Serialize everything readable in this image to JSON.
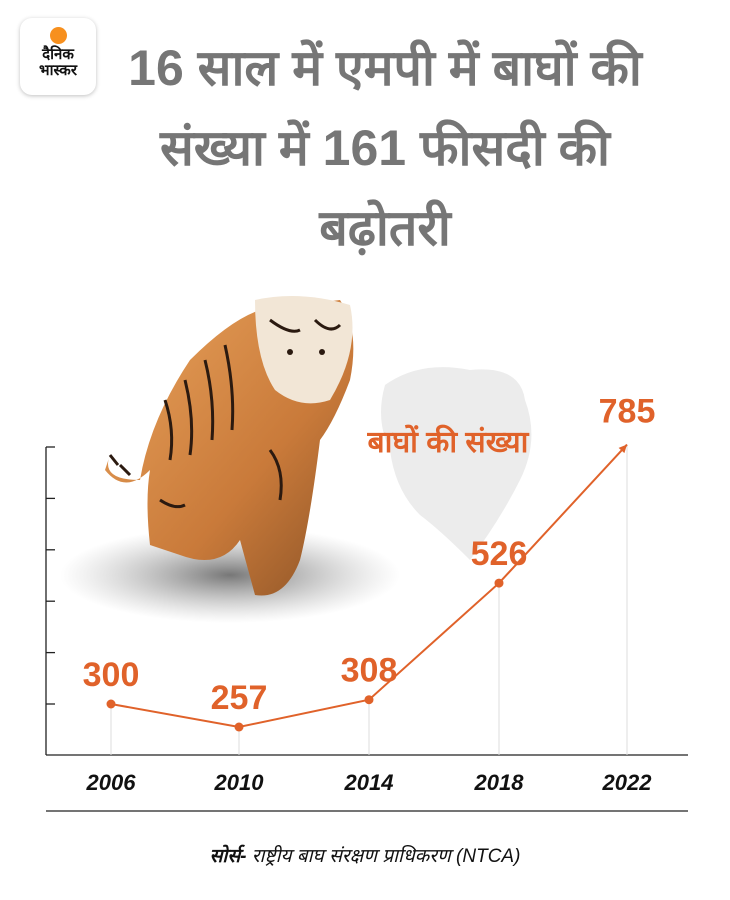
{
  "logo": {
    "line1": "दैनिक",
    "line2": "भास्कर"
  },
  "header": {
    "title": "16 साल में एमपी में बाघों की संख्या में 161 फीसदी की बढ़ोतरी"
  },
  "source": {
    "label": "सोर्स-",
    "text": " राष्ट्रीय बाघ संरक्षण प्राधिकरण (NTCA)"
  },
  "colors": {
    "accent": "#e0622a",
    "title": "#767676"
  },
  "chart_data": {
    "type": "line",
    "title": "बाघों की संख्या",
    "categories": [
      "2006",
      "2010",
      "2014",
      "2018",
      "2022"
    ],
    "values": [
      300,
      257,
      308,
      526,
      785
    ],
    "labels": [
      "300",
      "257",
      "308",
      "526",
      "785"
    ],
    "xlabel": "",
    "ylabel": "",
    "grid": "vertical",
    "last_point": "arrow"
  }
}
